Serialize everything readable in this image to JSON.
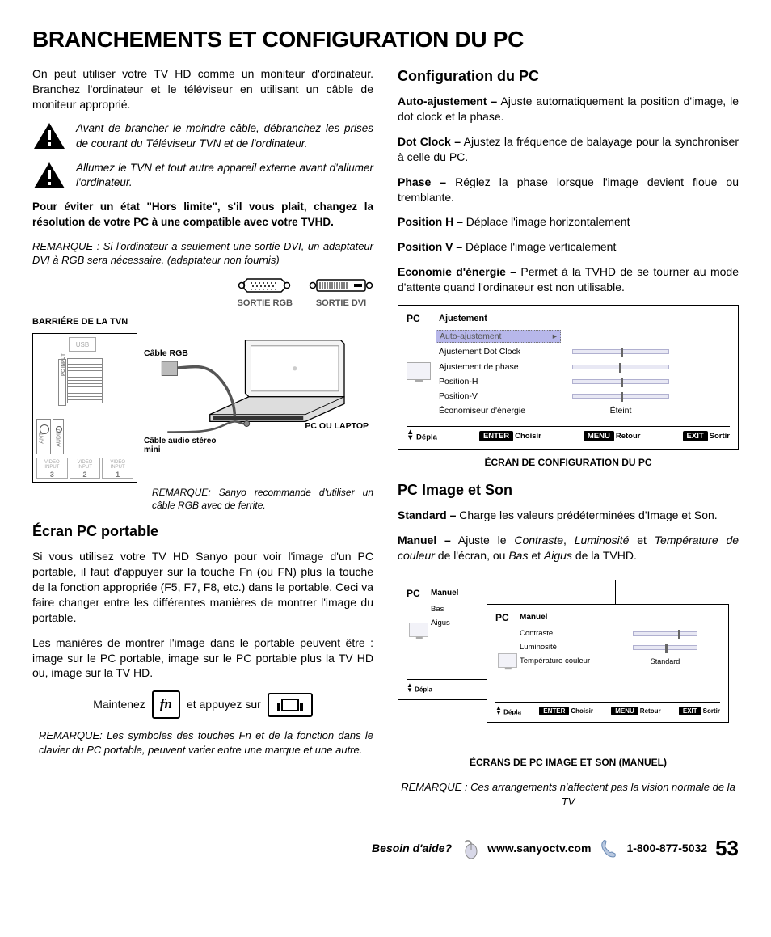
{
  "title": "BRANCHEMENTS ET CONFIGURATION DU PC",
  "leftCol": {
    "intro": "On peut utiliser votre TV HD comme un moniteur d'ordinateur. Branchez l'ordinateur et le téléviseur en utilisant un câble de moniteur approprié.",
    "warn1": "Avant de brancher le moindre câble, débranchez les prises de courant du Téléviseur TVN et de l'ordinateur.",
    "warn2": "Allumez le TVN et tout autre appareil externe avant d'allumer l'ordinateur.",
    "boldNote": "Pour éviter un état \"Hors limite\", s'il vous plait, changez la résolution de votre PC à une compatible avec votre TVHD.",
    "dviNote": "REMARQUE : Si l'ordinateur a seulement une sortie DVI, un adaptateur DVI à RGB sera nécessaire. (adaptateur non fournis)",
    "barriereLabel": "BARRIÉRE DE LA TVN",
    "sortieRgb": "SORTIE RGB",
    "sortieDvi": "SORTIE DVI",
    "cableRgb": "Câble RGB",
    "cableAudio": "Câble audio stéreo mini",
    "pcLaptop": "PC OU LAPTOP",
    "sanyoNote": "REMARQUE: Sanyo recommande d'utiliser un câble RGB avec de ferrite.",
    "ecranHeader": "Écran PC portable",
    "ecranP1": "Si vous utilisez votre TV HD Sanyo pour voir l'image d'un PC portable, il faut d'appuyer sur la touche Fn (ou FN) plus la touche de la fonction appropriée (F5, F7, F8, etc.) dans le portable. Ceci va faire changer entre les différentes manières de montrer l'image du portable.",
    "ecranP2": "Les manières de montrer l'image dans le portable peuvent être : image sur le PC portable, image sur le PC portable plus la TV HD ou, image sur la TV HD.",
    "maintenez": "Maintenez",
    "fnKey": "fn",
    "etAppuyez": "et appuyez sur",
    "fnNote": "REMARQUE: Les symboles des touches Fn et de la fonction dans le clavier du PC portable, peuvent varier entre une marque et une autre."
  },
  "rightCol": {
    "configHeader": "Configuration du PC",
    "auto": {
      "term": "Auto-ajustement –",
      "def": " Ajuste automatiquement la position d'image, le dot clock et la phase."
    },
    "dot": {
      "term": "Dot Clock –",
      "def": " Ajustez la fréquence de balayage pour la synchroniser à celle du PC."
    },
    "phase": {
      "term": "Phase –",
      "def": " Réglez la phase lorsque l'image devient floue ou tremblante."
    },
    "posH": {
      "term": "Position H –",
      "def": " Déplace l'image horizontalement"
    },
    "posV": {
      "term": "Position V –",
      "def": " Déplace l'image verticalement"
    },
    "eco": {
      "term": "Economie d'énergie –",
      "def": " Permet à la TVHD de se tourner au mode d'attente quand l'ordinateur est non utilisable."
    },
    "menu1": {
      "pc": "PC",
      "header": "Ajustement",
      "items": [
        {
          "label": "Auto-ajustement",
          "type": "highlight"
        },
        {
          "label": "Ajustement Dot Clock",
          "type": "slider",
          "pos": "s50"
        },
        {
          "label": "Ajustement de phase",
          "type": "slider",
          "pos": "s48"
        },
        {
          "label": "Position-H",
          "type": "slider",
          "pos": "s50"
        },
        {
          "label": "Position-V",
          "type": "slider",
          "pos": "s50"
        },
        {
          "label": "Économiseur d'énergie",
          "type": "value",
          "value": "Éteint"
        }
      ],
      "footer": {
        "depla": "Dépla",
        "enter": "ENTER",
        "choisir": "Choisir",
        "menu": "MENU",
        "retour": "Retour",
        "exit": "EXIT",
        "sortir": "Sortir"
      }
    },
    "caption1": "ÉCRAN DE CONFIGURATION DU PC",
    "imageSonHeader": "PC Image et Son",
    "standard": {
      "term": "Standard –",
      "def": " Charge les valeurs prédéterminées d'Image et Son."
    },
    "manuel": {
      "term": "Manuel –",
      "def_pre": " Ajuste le ",
      "i1": "Contraste",
      "sep1": ", ",
      "i2": "Luminosité",
      "sep2": " et ",
      "i3": "Température de couleur",
      "sep3": " de l'écran, ou ",
      "i4": "Bas",
      "sep4": " et ",
      "i5": "Aigus",
      "sep5": " de la TVHD."
    },
    "menu2a": {
      "pc": "PC",
      "header": "Manuel",
      "items": [
        {
          "label": "Bas",
          "type": "slider",
          "pos": "s50"
        },
        {
          "label": "Aigus",
          "type": "slider",
          "pos": "s50"
        }
      ]
    },
    "menu2b": {
      "pc": "PC",
      "header": "Manuel",
      "items": [
        {
          "label": "Contraste",
          "type": "slider",
          "pos": "s70"
        },
        {
          "label": "Luminosité",
          "type": "slider",
          "pos": "s50"
        },
        {
          "label": "Température couleur",
          "type": "value",
          "value": "Standard"
        }
      ]
    },
    "caption2": "ÉCRANS DE PC IMAGE ET SON (MANUEL)",
    "finalNote": "REMARQUE : Ces arrangements n'affectent pas la vision normale de la TV"
  },
  "footer": {
    "help": "Besoin d'aide?",
    "url": "www.sanyoctv.com",
    "phone": "1-800-877-5032",
    "page": "53"
  },
  "colors": {
    "highlight_bg": "#b7b7ea",
    "slider_bg": "#e8e8f4",
    "slider_border": "#b0b0d0"
  }
}
